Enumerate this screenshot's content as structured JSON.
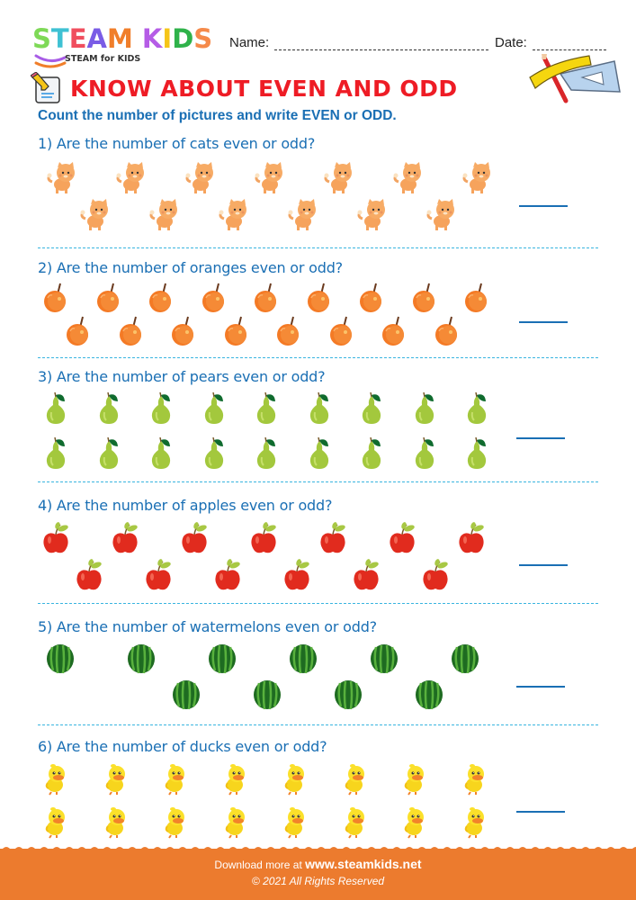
{
  "header": {
    "logo": {
      "letters": [
        {
          "char": "S",
          "color": "#7ed957"
        },
        {
          "char": "T",
          "color": "#3ec1d3"
        },
        {
          "char": "E",
          "color": "#f04e5e"
        },
        {
          "char": "A",
          "color": "#7a5ce6"
        },
        {
          "char": "M",
          "color": "#f07e2a"
        },
        {
          "char": " ",
          "color": "#ffffff"
        },
        {
          "char": "K",
          "color": "#b55ce6"
        },
        {
          "char": "I",
          "color": "#f5c518"
        },
        {
          "char": "D",
          "color": "#2fb24a"
        },
        {
          "char": "S",
          "color": "#f58a4a"
        }
      ],
      "subtitle": "STEAM for KIDS"
    },
    "name_label": "Name:",
    "date_label": "Date:"
  },
  "title": "KNOW ABOUT EVEN AND ODD",
  "instruction": "Count the number of pictures and write EVEN or ODD.",
  "colors": {
    "title": "#ee1c25",
    "text_blue": "#1a6fb4",
    "divider": "#39b5e0",
    "footer": "#ec7b2e"
  },
  "questions": [
    {
      "number": 1,
      "text": "1) Are the number of cats even or odd?",
      "item": "cat",
      "rows": [
        7,
        6
      ],
      "count": 13,
      "answer": ""
    },
    {
      "number": 2,
      "text": "2) Are the number of oranges even or odd?",
      "item": "orange",
      "rows": [
        9,
        8
      ],
      "count": 17,
      "answer": ""
    },
    {
      "number": 3,
      "text": "3) Are the number of pears even or odd?",
      "item": "pear",
      "rows": [
        9,
        9
      ],
      "count": 18,
      "answer": ""
    },
    {
      "number": 4,
      "text": "4) Are the number of apples even or odd?",
      "item": "apple",
      "rows": [
        7,
        6
      ],
      "count": 13,
      "answer": ""
    },
    {
      "number": 5,
      "text": "5) Are the number of watermelons even or odd?",
      "item": "watermelon",
      "rows": [
        6,
        4
      ],
      "count": 10,
      "answer": ""
    },
    {
      "number": 6,
      "text": "6) Are the number of ducks even or odd?",
      "item": "duck",
      "rows": [
        8,
        8
      ],
      "count": 16,
      "answer": ""
    }
  ],
  "footer": {
    "download_prefix": "Download more at ",
    "website": "www.steamkids.net",
    "copyright": "© 2021 All Rights Reserved"
  }
}
